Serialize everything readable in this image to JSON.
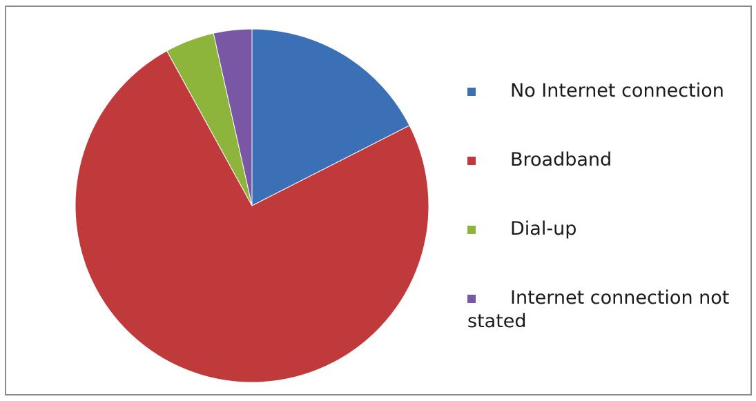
{
  "chart_data": {
    "type": "pie",
    "title": "",
    "start_angle_deg": 0,
    "direction": "clockwise",
    "legend_position": "right",
    "slices": [
      {
        "label": "No Internet connection",
        "value": 17.5,
        "color": "#3b6fb6"
      },
      {
        "label": "Broadband",
        "value": 74.5,
        "color": "#c0393b"
      },
      {
        "label": "Dial-up",
        "value": 4.5,
        "color": "#8db53c"
      },
      {
        "label": "Internet connection not stated",
        "value": 3.5,
        "color": "#7a57a4"
      }
    ]
  }
}
